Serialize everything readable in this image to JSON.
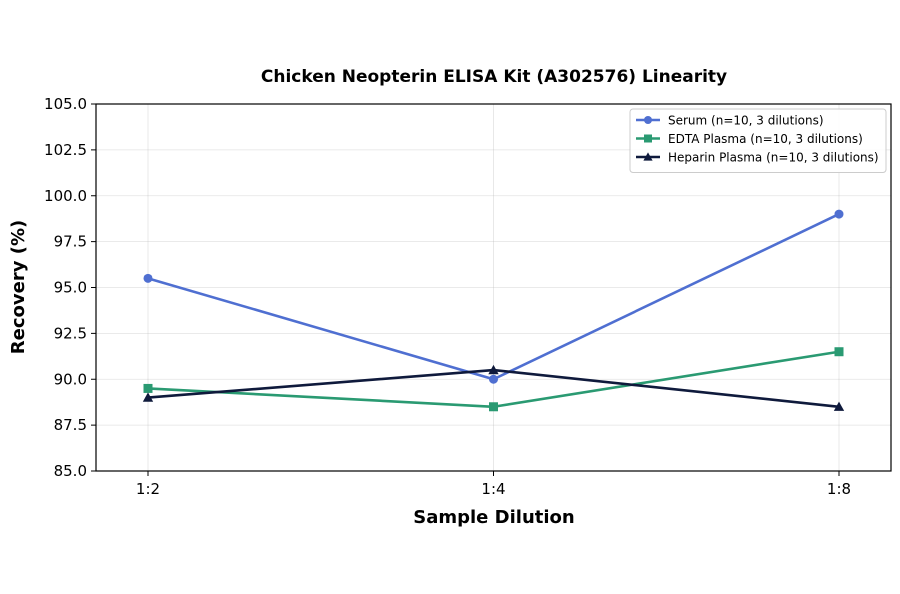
{
  "chart_data": {
    "type": "line",
    "title": "Chicken Neopterin ELISA Kit (A302576) Linearity",
    "xlabel": "Sample Dilution",
    "ylabel": "Recovery (%)",
    "categories": [
      "1:2",
      "1:4",
      "1:8"
    ],
    "ylim": [
      85.0,
      105.0
    ],
    "yticks": [
      "85.0",
      "87.5",
      "90.0",
      "92.5",
      "95.0",
      "97.5",
      "100.0",
      "102.5",
      "105.0"
    ],
    "grid": true,
    "legend_position": "top-right",
    "series": [
      {
        "name": "Serum (n=10, 3 dilutions)",
        "values": [
          95.5,
          90.0,
          99.0
        ],
        "color": "#4f6fd1",
        "marker": "circle"
      },
      {
        "name": "EDTA Plasma (n=10, 3 dilutions)",
        "values": [
          89.5,
          88.5,
          91.5
        ],
        "color": "#2a9a72",
        "marker": "square"
      },
      {
        "name": "Heparin Plasma (n=10, 3 dilutions)",
        "values": [
          89.0,
          90.5,
          88.5
        ],
        "color": "#0f1a3c",
        "marker": "triangle"
      }
    ]
  }
}
